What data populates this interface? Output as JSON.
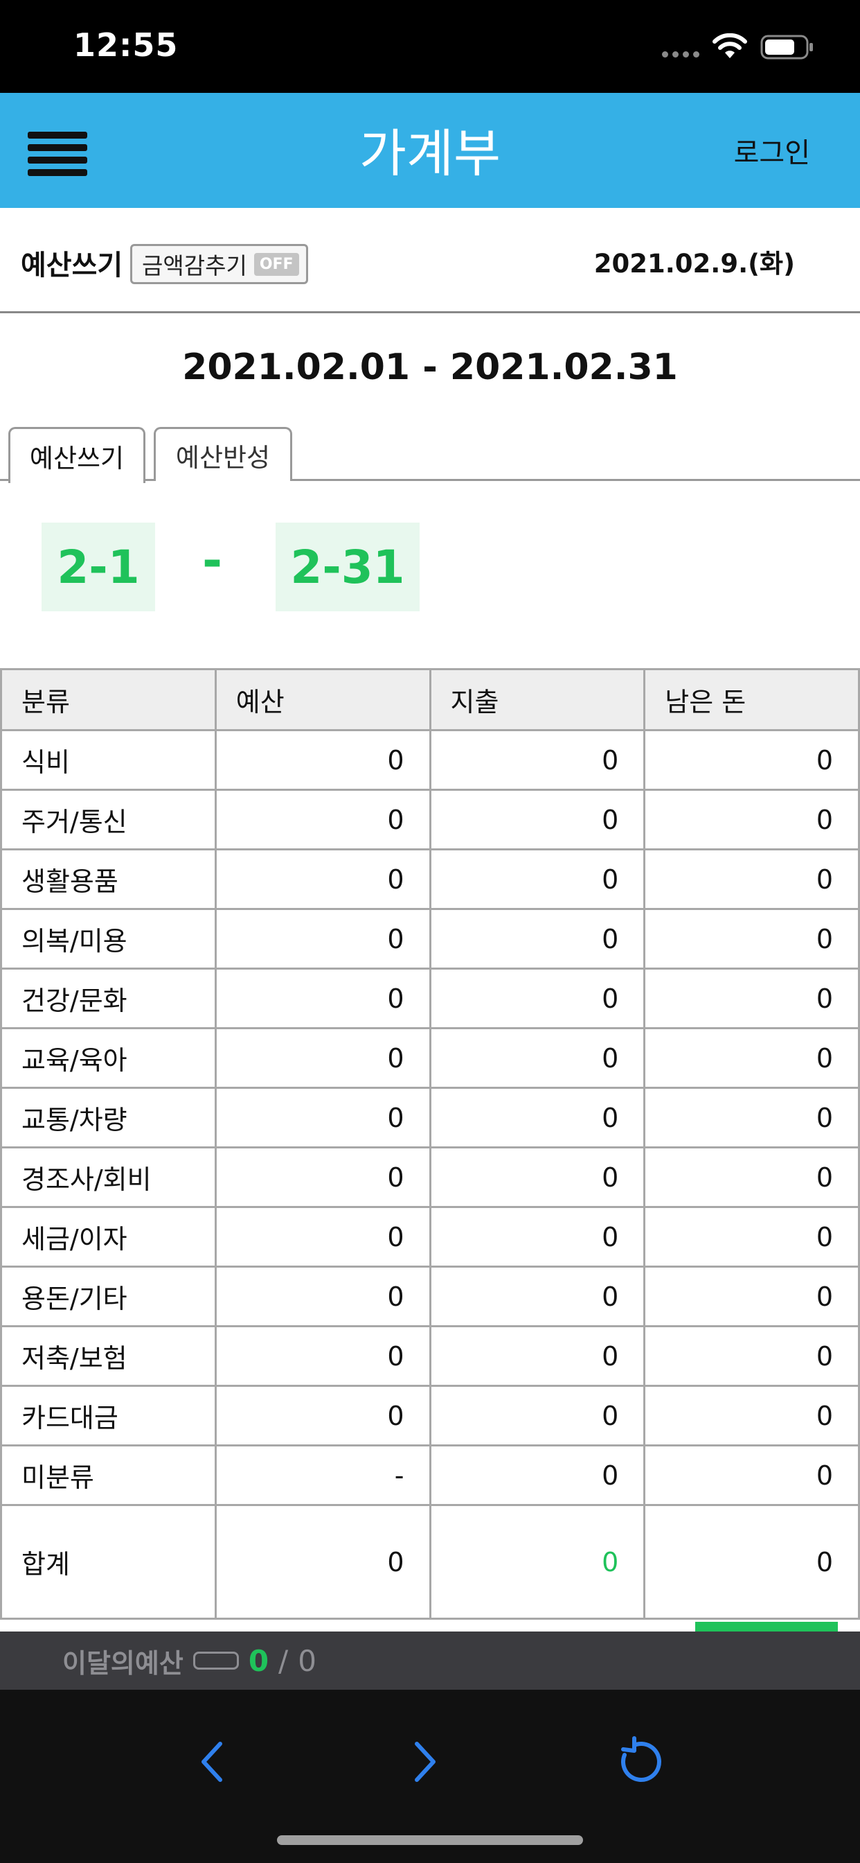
{
  "status_bar": {
    "time": "12:55"
  },
  "header": {
    "title": "가계부",
    "login_label": "로그인"
  },
  "toolbar": {
    "write_budget_label": "예산쓰기",
    "hide_amount_label": "금액감추기",
    "hide_amount_state": "OFF",
    "current_date": "2021.02.9.(화)"
  },
  "period": {
    "title": "2021.02.01 - 2021.02.31"
  },
  "tabs": [
    {
      "label": "예산쓰기",
      "active": true
    },
    {
      "label": "예산반성",
      "active": false
    }
  ],
  "date_range": {
    "start": "2-1",
    "separator": "-",
    "end": "2-31"
  },
  "table": {
    "headers": [
      "분류",
      "예산",
      "지출",
      "남은 돈"
    ],
    "rows": [
      {
        "category": "식비",
        "budget": "0",
        "spent": "0",
        "remaining": "0"
      },
      {
        "category": "주거/통신",
        "budget": "0",
        "spent": "0",
        "remaining": "0"
      },
      {
        "category": "생활용품",
        "budget": "0",
        "spent": "0",
        "remaining": "0"
      },
      {
        "category": "의복/미용",
        "budget": "0",
        "spent": "0",
        "remaining": "0"
      },
      {
        "category": "건강/문화",
        "budget": "0",
        "spent": "0",
        "remaining": "0"
      },
      {
        "category": "교육/육아",
        "budget": "0",
        "spent": "0",
        "remaining": "0"
      },
      {
        "category": "교통/차량",
        "budget": "0",
        "spent": "0",
        "remaining": "0"
      },
      {
        "category": "경조사/회비",
        "budget": "0",
        "spent": "0",
        "remaining": "0"
      },
      {
        "category": "세금/이자",
        "budget": "0",
        "spent": "0",
        "remaining": "0"
      },
      {
        "category": "용돈/기타",
        "budget": "0",
        "spent": "0",
        "remaining": "0"
      },
      {
        "category": "저축/보험",
        "budget": "0",
        "spent": "0",
        "remaining": "0"
      },
      {
        "category": "카드대금",
        "budget": "0",
        "spent": "0",
        "remaining": "0"
      },
      {
        "category": "미분류",
        "budget": "-",
        "spent": "0",
        "remaining": "0"
      }
    ],
    "total": {
      "category": "합계",
      "budget": "0",
      "spent": "0",
      "remaining": "0"
    }
  },
  "info_bar": {
    "label": "이달의예산",
    "spent": "0",
    "separator": "/",
    "total": "0"
  },
  "colors": {
    "header": "#35b0e6",
    "accent_green": "#1fc25a",
    "info_bar": "#3b3b3f",
    "nav_icon": "#2f80ed"
  }
}
